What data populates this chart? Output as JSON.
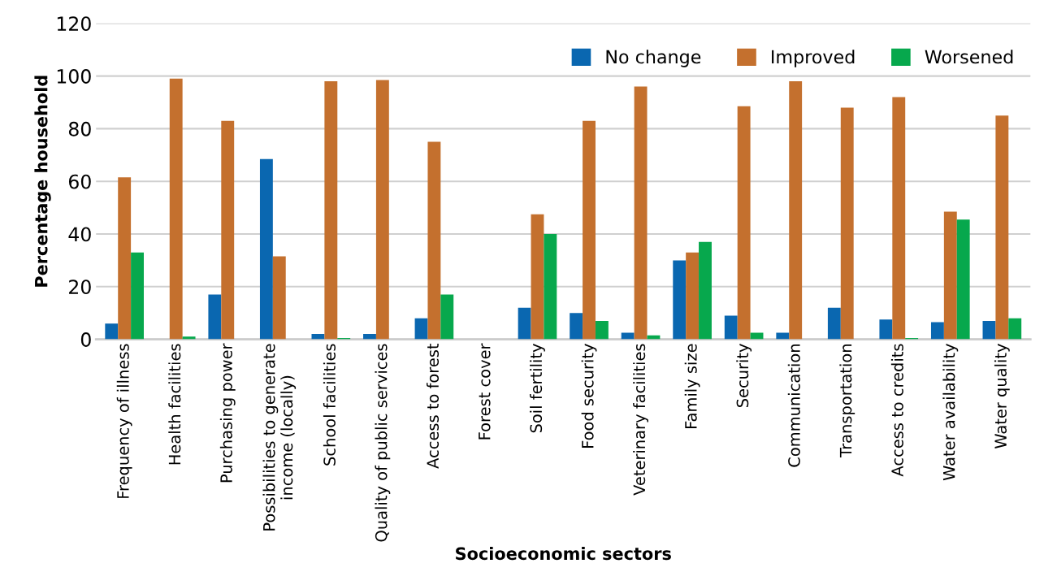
{
  "chart_data": {
    "type": "bar",
    "xlabel": "Socioeconomic sectors",
    "ylabel": "Percentage household",
    "categories": [
      "Frequency of illness",
      "Health facilities",
      "Purchasing power",
      "Possibilities to generate\nincome (locally)",
      "School facilities",
      "Quality of public services",
      "Access to forest",
      "Forest cover",
      "Soil fertility",
      "Food security",
      "Veterinary facilities",
      "Family size",
      "Security",
      "Communication",
      "Transportation",
      "Access to credits",
      "Water availability",
      "Water quality"
    ],
    "series": [
      {
        "name": "No change",
        "color": "#0a67b0",
        "values": [
          6,
          0,
          17,
          68.5,
          2,
          2,
          8,
          0,
          12,
          10,
          2.5,
          30,
          9,
          2.5,
          12,
          7.5,
          6.5,
          7
        ]
      },
      {
        "name": "Improved",
        "color": "#c4702e",
        "values": [
          61.5,
          99,
          83,
          31.5,
          98,
          98.5,
          75,
          0,
          47.5,
          83,
          96,
          33,
          88.5,
          98,
          88,
          92,
          48.5,
          85
        ]
      },
      {
        "name": "Worsened",
        "color": "#07a84d",
        "values": [
          33,
          1,
          0,
          0,
          0.5,
          0,
          17,
          0,
          40,
          7,
          1.5,
          37,
          2.5,
          0,
          0,
          0.5,
          45.5,
          8
        ]
      }
    ],
    "ylim": [
      0,
      120
    ],
    "yticks": [
      0,
      20,
      40,
      60,
      80,
      100,
      120
    ],
    "grid": "y",
    "legend": "top right"
  }
}
